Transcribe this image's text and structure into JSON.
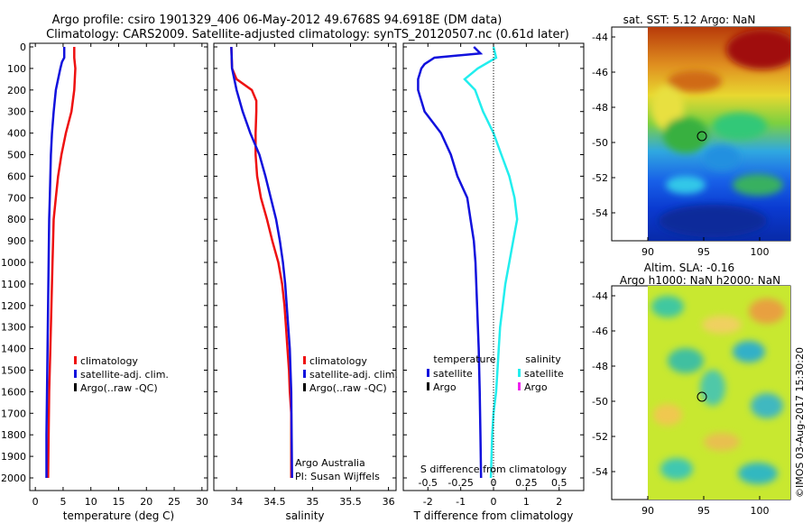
{
  "header": {
    "line1": "Argo profile: csiro 1901329_406 06-May-2012 49.6768S 94.6918E (DM data)",
    "line2": "Climatology: CARS2009. Satellite-adjusted climatology: synTS_20120507.nc (0.61d later)"
  },
  "colors": {
    "climatology": "#ee1111",
    "satellite": "#1111dd",
    "argo": "#000000",
    "sal_satellite": "#22eeee",
    "sal_argo": "#ee22ee"
  },
  "credits": {
    "line1": "Argo Australia",
    "line2": "PI: Susan Wijffels",
    "stamp": "©IMOS 03-Aug-2017 15:30:20"
  },
  "chart_data": [
    {
      "id": "temperature",
      "type": "line",
      "xlabel": "temperature (deg C)",
      "xlim": [
        -1,
        31
      ],
      "ylim": [
        2050,
        0
      ],
      "xticks": [
        0,
        5,
        10,
        15,
        20,
        25,
        30
      ],
      "yticks": [
        0,
        100,
        200,
        300,
        400,
        500,
        600,
        700,
        800,
        900,
        1000,
        1100,
        1200,
        1300,
        1400,
        1500,
        1600,
        1700,
        1800,
        1900,
        2000
      ],
      "legend": [
        "climatology",
        "satellite-adj. clim.",
        "Argo(..raw -QC)"
      ],
      "series": [
        {
          "name": "climatology",
          "color": "#ee1111",
          "points": [
            [
              7.0,
              0
            ],
            [
              7.0,
              50
            ],
            [
              7.2,
              100
            ],
            [
              7.1,
              150
            ],
            [
              7.0,
              200
            ],
            [
              6.5,
              300
            ],
            [
              5.5,
              400
            ],
            [
              4.7,
              500
            ],
            [
              4.1,
              600
            ],
            [
              3.7,
              700
            ],
            [
              3.3,
              800
            ],
            [
              3.1,
              1000
            ],
            [
              2.9,
              1200
            ],
            [
              2.7,
              1400
            ],
            [
              2.5,
              1600
            ],
            [
              2.4,
              1800
            ],
            [
              2.3,
              2000
            ]
          ]
        },
        {
          "name": "satellite-adj. clim.",
          "color": "#1111dd",
          "points": [
            [
              5.2,
              0
            ],
            [
              5.2,
              50
            ],
            [
              4.8,
              70
            ],
            [
              4.5,
              100
            ],
            [
              4.1,
              150
            ],
            [
              3.7,
              200
            ],
            [
              3.3,
              300
            ],
            [
              3.0,
              400
            ],
            [
              2.8,
              500
            ],
            [
              2.7,
              600
            ],
            [
              2.6,
              700
            ],
            [
              2.5,
              800
            ],
            [
              2.4,
              1000
            ],
            [
              2.3,
              1200
            ],
            [
              2.2,
              1400
            ],
            [
              2.1,
              1600
            ],
            [
              2.0,
              1800
            ],
            [
              2.0,
              2000
            ]
          ]
        }
      ]
    },
    {
      "id": "salinity",
      "type": "line",
      "xlabel": "salinity",
      "xlim": [
        33.7,
        36.1
      ],
      "ylim": [
        2050,
        0
      ],
      "xticks": [
        34,
        34.5,
        35,
        35.5,
        36
      ],
      "legend": [
        "climatology",
        "satellite-adj. clim.",
        "Argo(..raw -QC)"
      ],
      "series": [
        {
          "name": "climatology",
          "color": "#ee1111",
          "points": [
            [
              33.93,
              0
            ],
            [
              33.94,
              100
            ],
            [
              34.0,
              150
            ],
            [
              34.2,
              200
            ],
            [
              34.26,
              250
            ],
            [
              34.26,
              300
            ],
            [
              34.25,
              400
            ],
            [
              34.25,
              500
            ],
            [
              34.27,
              600
            ],
            [
              34.32,
              700
            ],
            [
              34.4,
              800
            ],
            [
              34.47,
              900
            ],
            [
              34.55,
              1000
            ],
            [
              34.6,
              1100
            ],
            [
              34.63,
              1200
            ],
            [
              34.65,
              1300
            ],
            [
              34.67,
              1400
            ],
            [
              34.69,
              1500
            ],
            [
              34.7,
              1600
            ],
            [
              34.72,
              1700
            ],
            [
              34.72,
              2000
            ]
          ]
        },
        {
          "name": "satellite-adj. clim.",
          "color": "#1111dd",
          "points": [
            [
              33.93,
              0
            ],
            [
              33.94,
              100
            ],
            [
              34.0,
              200
            ],
            [
              34.08,
              300
            ],
            [
              34.18,
              400
            ],
            [
              34.3,
              500
            ],
            [
              34.38,
              600
            ],
            [
              34.45,
              700
            ],
            [
              34.52,
              800
            ],
            [
              34.57,
              900
            ],
            [
              34.61,
              1000
            ],
            [
              34.64,
              1100
            ],
            [
              34.66,
              1200
            ],
            [
              34.68,
              1300
            ],
            [
              34.7,
              1400
            ],
            [
              34.71,
              1500
            ],
            [
              34.72,
              1600
            ],
            [
              34.73,
              2000
            ]
          ]
        }
      ]
    },
    {
      "id": "difference",
      "type": "line",
      "xlabel": "T difference from climatology",
      "xlabel_top": "S difference from climatology",
      "xlim": [
        -2.75,
        2.75
      ],
      "ylim": [
        2050,
        0
      ],
      "xticks": [
        -2,
        -1,
        0,
        1,
        2
      ],
      "sticks": [
        "-0.5",
        "-0.25",
        "0",
        "0.25",
        "0.5"
      ],
      "legend_headers": [
        "temperature",
        "salinity"
      ],
      "legend": [
        "satellite",
        "Argo",
        "satellite",
        "Argo"
      ],
      "series": [
        {
          "name": "temperature satellite",
          "color": "#1111dd",
          "points": [
            [
              -0.6,
              0
            ],
            [
              -0.4,
              30
            ],
            [
              -1.8,
              50
            ],
            [
              -2.1,
              80
            ],
            [
              -2.2,
              100
            ],
            [
              -2.3,
              150
            ],
            [
              -2.3,
              200
            ],
            [
              -2.1,
              300
            ],
            [
              -1.6,
              400
            ],
            [
              -1.3,
              500
            ],
            [
              -1.1,
              600
            ],
            [
              -0.8,
              700
            ],
            [
              -0.7,
              800
            ],
            [
              -0.6,
              900
            ],
            [
              -0.55,
              1000
            ],
            [
              -0.5,
              1200
            ],
            [
              -0.45,
              1400
            ],
            [
              -0.42,
              1600
            ],
            [
              -0.4,
              1800
            ],
            [
              -0.38,
              2000
            ]
          ]
        },
        {
          "name": "salinity satellite",
          "color": "#22eeee",
          "points": [
            [
              0.0,
              0
            ],
            [
              0.02,
              50
            ],
            [
              -0.12,
              100
            ],
            [
              -0.22,
              150
            ],
            [
              -0.14,
              200
            ],
            [
              -0.08,
              300
            ],
            [
              0.0,
              400
            ],
            [
              0.06,
              500
            ],
            [
              0.12,
              600
            ],
            [
              0.16,
              700
            ],
            [
              0.18,
              800
            ],
            [
              0.15,
              900
            ],
            [
              0.12,
              1000
            ],
            [
              0.09,
              1100
            ],
            [
              0.07,
              1200
            ],
            [
              0.05,
              1300
            ],
            [
              0.04,
              1400
            ],
            [
              0.03,
              1500
            ],
            [
              0.02,
              1600
            ],
            [
              0.0,
              1700
            ],
            [
              -0.01,
              1800
            ],
            [
              -0.02,
              2000
            ]
          ]
        }
      ]
    }
  ],
  "maps": [
    {
      "id": "sst",
      "title": "sat. SST: 5.12 Argo: NaN",
      "xticks": [
        "90",
        "95",
        "100"
      ],
      "yticks": [
        "-44",
        "-46",
        "-48",
        "-50",
        "-52",
        "-54"
      ]
    },
    {
      "id": "sla",
      "title1": "Altim. SLA: -0.16",
      "title2": "Argo h1000: NaN h2000: NaN",
      "xticks": [
        "90",
        "95",
        "100"
      ],
      "yticks": [
        "-44",
        "-46",
        "-48",
        "-50",
        "-52",
        "-54"
      ]
    }
  ]
}
